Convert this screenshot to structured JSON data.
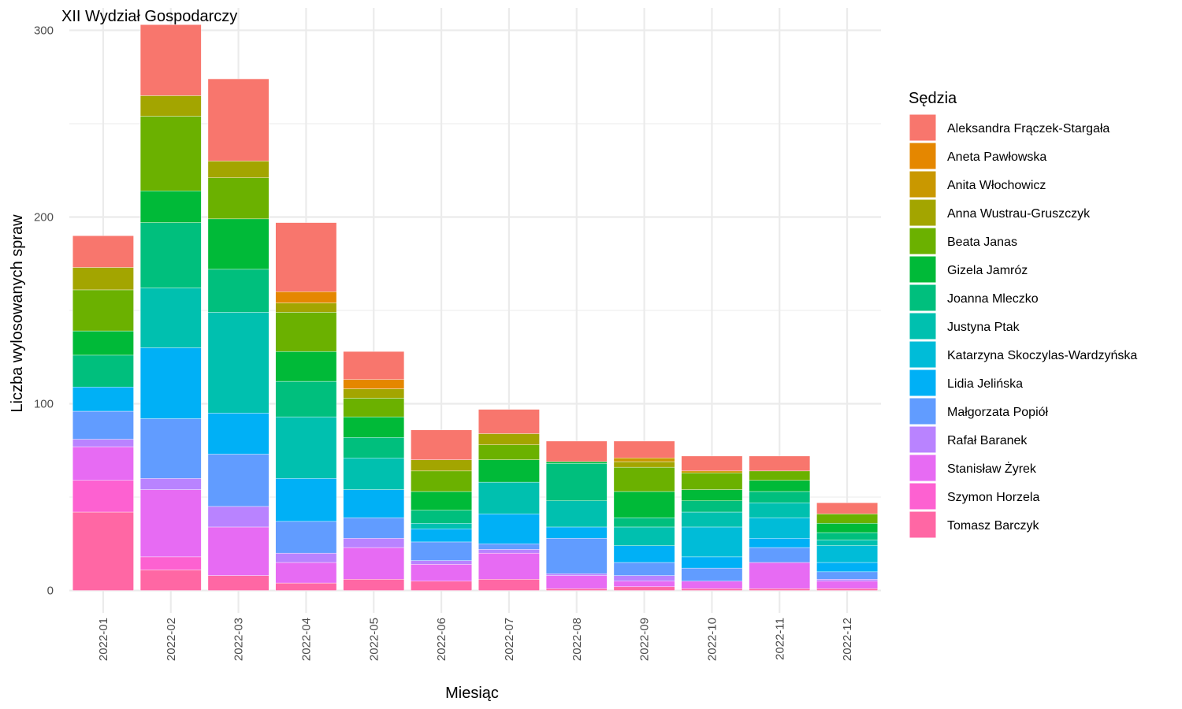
{
  "chart_data": {
    "type": "bar",
    "stacked": true,
    "title": "XII Wydział Gospodarczy",
    "xlabel": "Miesiąc",
    "ylabel": "Liczba wylosowanych spraw",
    "ylim": [
      -12,
      312
    ],
    "yticks": [
      0,
      100,
      200,
      300
    ],
    "grid": true,
    "legend_title": "Sędzia",
    "legend_position": "right",
    "categories": [
      "2022-01",
      "2022-02",
      "2022-03",
      "2022-04",
      "2022-05",
      "2022-06",
      "2022-07",
      "2022-08",
      "2022-09",
      "2022-10",
      "2022-11",
      "2022-12"
    ],
    "series": [
      {
        "name": "Aleksandra Frączek-Stargała",
        "color": "#F8766D",
        "values": [
          17,
          38,
          44,
          37,
          15,
          16,
          13,
          11,
          9,
          8,
          8,
          6
        ]
      },
      {
        "name": "Aneta Pawłowska",
        "color": "#E58700",
        "values": [
          0,
          0,
          0,
          6,
          5,
          0,
          0,
          0,
          0,
          0,
          0,
          0
        ]
      },
      {
        "name": "Anita Włochowicz",
        "color": "#C99800",
        "values": [
          0,
          0,
          0,
          0,
          0,
          0,
          0,
          0,
          2,
          1,
          0,
          0
        ]
      },
      {
        "name": "Anna Wustrau-Gruszczyk",
        "color": "#A3A500",
        "values": [
          12,
          11,
          9,
          5,
          5,
          6,
          6,
          0,
          3,
          0,
          0,
          0
        ]
      },
      {
        "name": "Beata Janas",
        "color": "#6BB100",
        "values": [
          22,
          40,
          22,
          21,
          10,
          11,
          8,
          0,
          13,
          9,
          5,
          5
        ]
      },
      {
        "name": "Gizela Jamróz",
        "color": "#00BA38",
        "values": [
          13,
          17,
          27,
          16,
          11,
          10,
          12,
          1,
          14,
          6,
          6,
          5
        ]
      },
      {
        "name": "Joanna Mleczko",
        "color": "#00BF7D",
        "values": [
          17,
          35,
          23,
          19,
          11,
          7,
          0,
          20,
          5,
          6,
          6,
          4
        ]
      },
      {
        "name": "Justyna Ptak",
        "color": "#00C0AF",
        "values": [
          0,
          32,
          54,
          33,
          17,
          3,
          17,
          14,
          10,
          8,
          8,
          3
        ]
      },
      {
        "name": "Katarzyna Skoczylas-Wardzyńska",
        "color": "#00BCD8",
        "values": [
          0,
          0,
          0,
          0,
          0,
          0,
          0,
          0,
          0,
          16,
          11,
          9
        ]
      },
      {
        "name": "Lidia Jelińska",
        "color": "#00B0F6",
        "values": [
          13,
          38,
          22,
          23,
          15,
          7,
          16,
          6,
          9,
          6,
          5,
          5
        ]
      },
      {
        "name": "Małgorzata Popiół",
        "color": "#619CFF",
        "values": [
          15,
          32,
          28,
          17,
          11,
          10,
          3,
          19,
          7,
          7,
          8,
          4
        ]
      },
      {
        "name": "Rafał Baranek",
        "color": "#B983FF",
        "values": [
          4,
          6,
          11,
          5,
          5,
          2,
          2,
          1,
          3,
          0,
          0,
          1
        ]
      },
      {
        "name": "Stanisław Żyrek",
        "color": "#E76BF3",
        "values": [
          18,
          36,
          26,
          11,
          17,
          9,
          14,
          7,
          3,
          4,
          14,
          4
        ]
      },
      {
        "name": "Szymon Horzela",
        "color": "#FD61D1",
        "values": [
          17,
          7,
          0,
          0,
          0,
          0,
          0,
          0,
          0,
          0,
          0,
          0
        ]
      },
      {
        "name": "Tomasz Barczyk",
        "color": "#FF67A4",
        "values": [
          42,
          11,
          8,
          4,
          6,
          5,
          6,
          1,
          2,
          1,
          1,
          1
        ]
      }
    ]
  }
}
